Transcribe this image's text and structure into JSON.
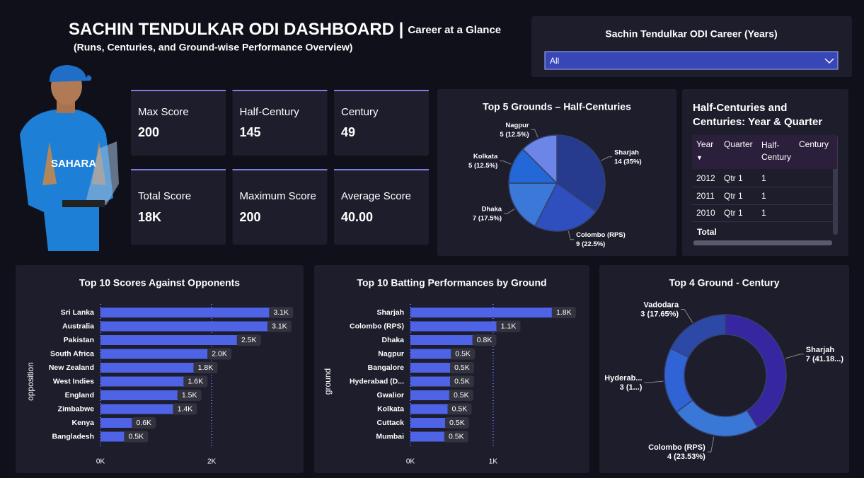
{
  "header": {
    "title": "SACHIN TENDULKAR ODI DASHBOARD |",
    "tagline": "Career at a Glance",
    "subtitle": "(Runs, Centuries, and Ground-wise Performance Overview)"
  },
  "slicer": {
    "title": "Sachin Tendulkar ODI Career (Years)",
    "value": "All"
  },
  "kpis": [
    {
      "label": "Max Score",
      "value": "200"
    },
    {
      "label": "Half-Century",
      "value": "145"
    },
    {
      "label": "Century",
      "value": "49"
    },
    {
      "label": "Total Score",
      "value": "18K"
    },
    {
      "label": "Maximum Score",
      "value": "200"
    },
    {
      "label": "Average Score",
      "value": "40.00"
    }
  ],
  "table": {
    "title": "Half-Centuries and Centuries: Year & Quarter",
    "columns": [
      "Year",
      "Quarter",
      "Half-Century",
      "Century"
    ],
    "rows": [
      [
        "2012",
        "Qtr 1",
        "1"
      ],
      [
        "2011",
        "Qtr 1",
        "1"
      ],
      [
        "2010",
        "Qtr 1",
        "1"
      ]
    ],
    "total": "Total"
  },
  "chart_data": [
    {
      "type": "pie",
      "title": "Top 5 Grounds – Half-Centuries",
      "categories": [
        "Sharjah",
        "Colombo (RPS)",
        "Dhaka",
        "Kolkata",
        "Nagpur"
      ],
      "values": [
        14,
        9,
        7,
        5,
        5
      ],
      "value_labels": [
        "14 (35%)",
        "9 (22.5%)",
        "7 (17.5%)",
        "5 (12.5%)",
        "5 (12.5%)"
      ],
      "colors": [
        "#263b8e",
        "#2f4fbf",
        "#3b78d8",
        "#2467d6",
        "#6b86e6"
      ]
    },
    {
      "type": "bar",
      "orientation": "horizontal",
      "title": "Top 10 Scores Against Opponents",
      "y_label": "opposition",
      "categories": [
        "Sri Lanka",
        "Australia",
        "Pakistan",
        "South Africa",
        "New Zealand",
        "West Indies",
        "England",
        "Zimbabwe",
        "Kenya",
        "Bangladesh"
      ],
      "values": [
        3110,
        3080,
        2530,
        2000,
        1750,
        1570,
        1460,
        1380,
        640,
        500
      ],
      "value_labels": [
        "3.1K",
        "3.1K",
        "2.5K",
        "2.0K",
        "1.8K",
        "1.6K",
        "1.5K",
        "1.4K",
        "0.6K",
        "0.5K"
      ],
      "color": "#4f63e6",
      "xlim": [
        0,
        3400
      ],
      "xticks": [
        {
          "value": 0,
          "label": "0K"
        },
        {
          "value": 2000,
          "label": "2K"
        }
      ],
      "grid": true
    },
    {
      "type": "bar",
      "orientation": "horizontal",
      "title": "Top 10 Batting Performances by Ground",
      "y_label": "ground",
      "categories": [
        "Sharjah",
        "Colombo (RPS)",
        "Dhaka",
        "Nagpur",
        "Bangalore",
        "Hyderabad (D...",
        "Gwalior",
        "Kolkata",
        "Cuttack",
        "Mumbai"
      ],
      "values": [
        1760,
        1090,
        800,
        540,
        530,
        530,
        520,
        500,
        470,
        460
      ],
      "value_labels": [
        "1.8K",
        "1.1K",
        "0.8K",
        "0.5K",
        "0.5K",
        "0.5K",
        "0.5K",
        "0.5K",
        "0.5K",
        "0.5K"
      ],
      "color": "#4f63e6",
      "xlim": [
        0,
        1950
      ],
      "xticks": [
        {
          "value": 0,
          "label": "0K"
        },
        {
          "value": 1000,
          "label": "1K"
        }
      ],
      "grid": true
    },
    {
      "type": "donut",
      "title": "Top 4 Ground - Century",
      "categories": [
        "Sharjah",
        "Colombo (RPS)",
        "Hyderab...",
        "Vadodara"
      ],
      "values": [
        7,
        4,
        3,
        3
      ],
      "value_labels": [
        "7 (41.18...)",
        "4 (23.53%)",
        "3 (1...)",
        "3 (17.65%)"
      ],
      "colors": [
        "#3626a0",
        "#3a78d8",
        "#2f63d6",
        "#2d49a8"
      ]
    }
  ]
}
